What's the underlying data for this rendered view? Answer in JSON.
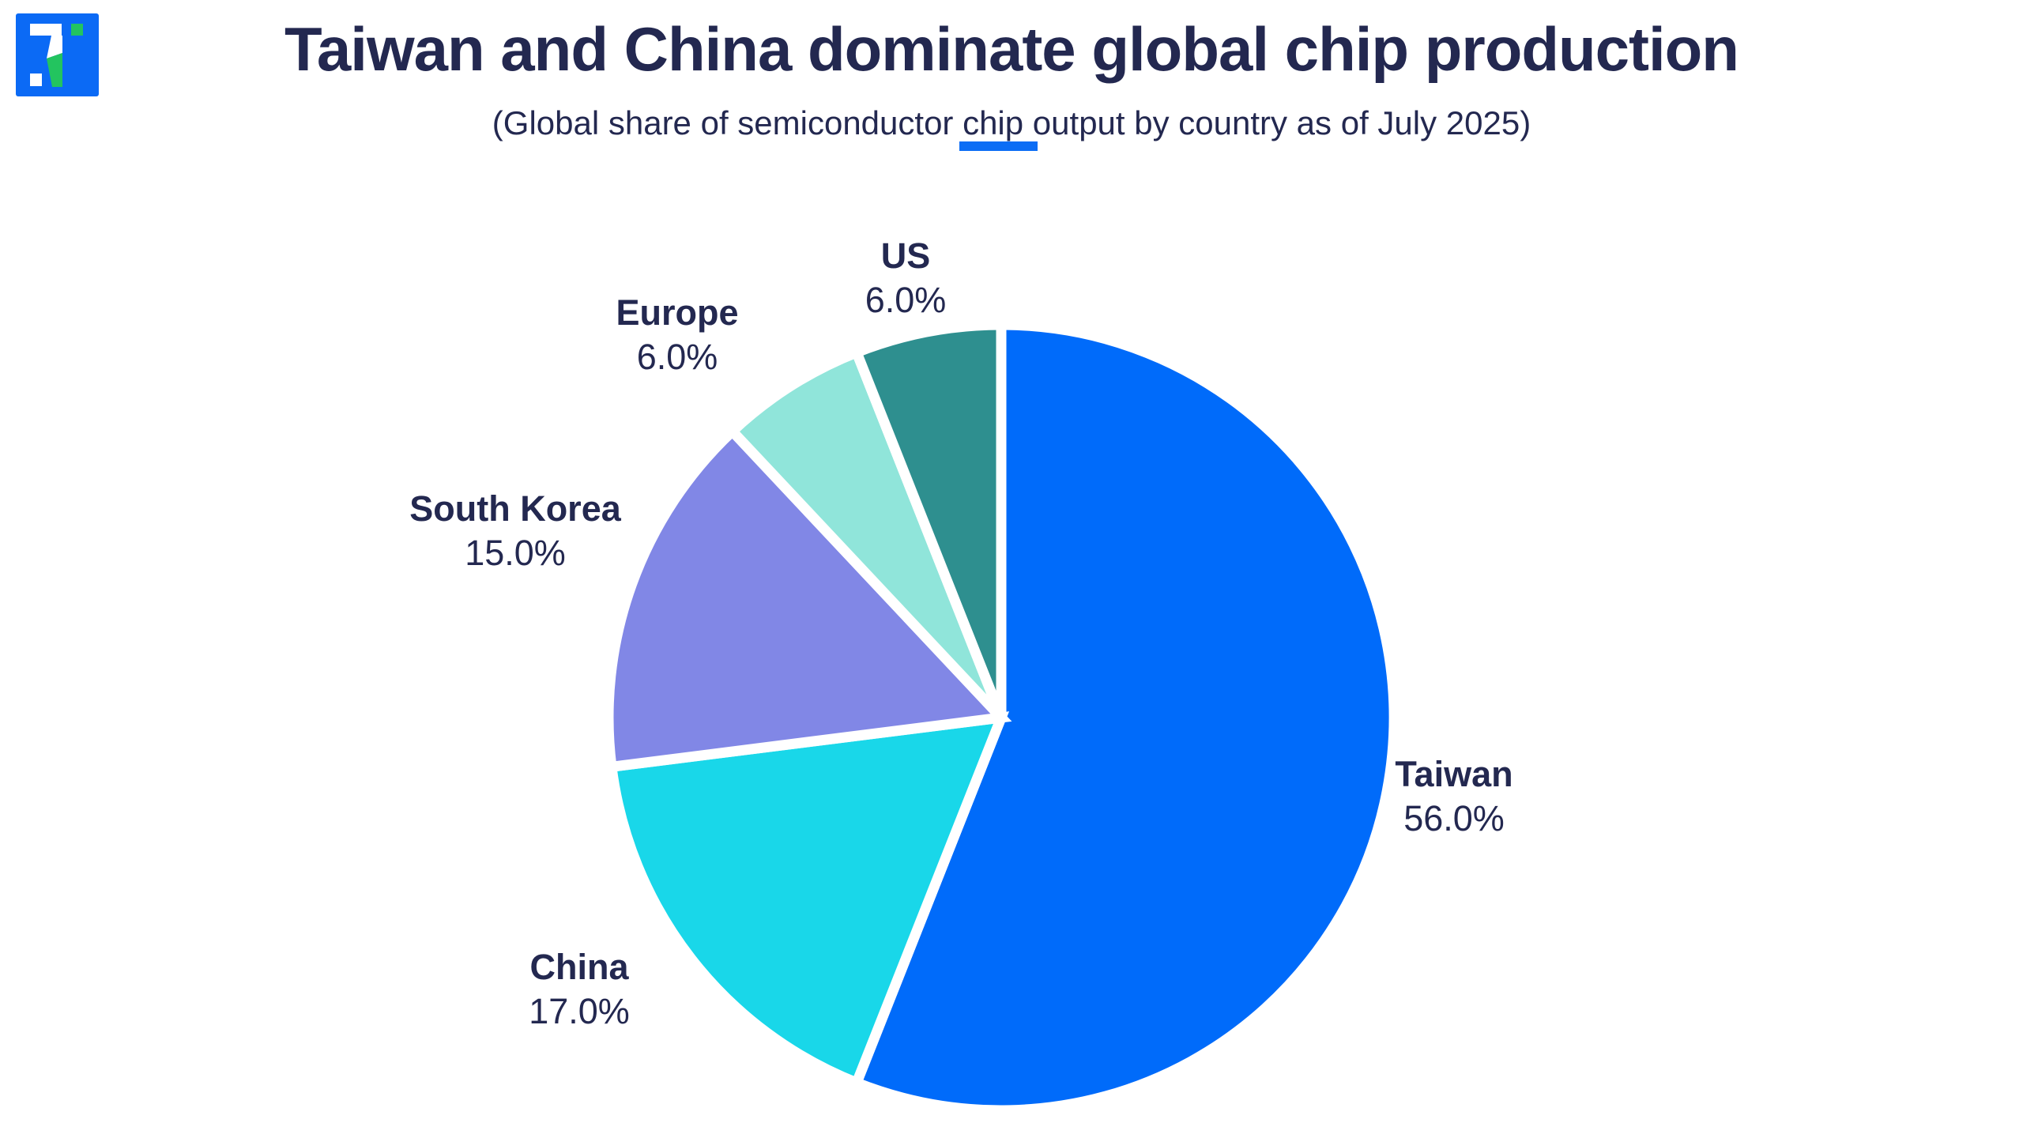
{
  "page": {
    "background": "#ffffff"
  },
  "palette": {
    "navy": "#232850",
    "accent_blue": "#0c6df5",
    "logo_blue": "#0b6af5",
    "logo_green": "#23c45f",
    "slice_gap_white": "#ffffff"
  },
  "header": {
    "title": "Taiwan and China dominate global chip production",
    "subtitle_prefix": "(Global share of semiconductor ",
    "subtitle_underlined": "chip",
    "subtitle_suffix": " output by country as of July 2025)"
  },
  "chart_data": {
    "type": "pie",
    "title": "Taiwan and China dominate global chip production",
    "subtitle": "(Global share of semiconductor chip output by country as of July 2025)",
    "unit": "percent",
    "start_angle_deg": 0,
    "direction": "clockwise",
    "legend_position": "labels-around-pie",
    "slices": [
      {
        "name": "Taiwan",
        "value": 56.0,
        "display": "56.0%",
        "color": "#006bfa"
      },
      {
        "name": "China",
        "value": 17.0,
        "display": "17.0%",
        "color": "#19d7e9"
      },
      {
        "name": "South Korea",
        "value": 15.0,
        "display": "15.0%",
        "color": "#8187e6"
      },
      {
        "name": "Europe",
        "value": 6.0,
        "display": "6.0%",
        "color": "#90e5da"
      },
      {
        "name": "US",
        "value": 6.0,
        "display": "6.0%",
        "color": "#2e8f8f"
      }
    ]
  }
}
